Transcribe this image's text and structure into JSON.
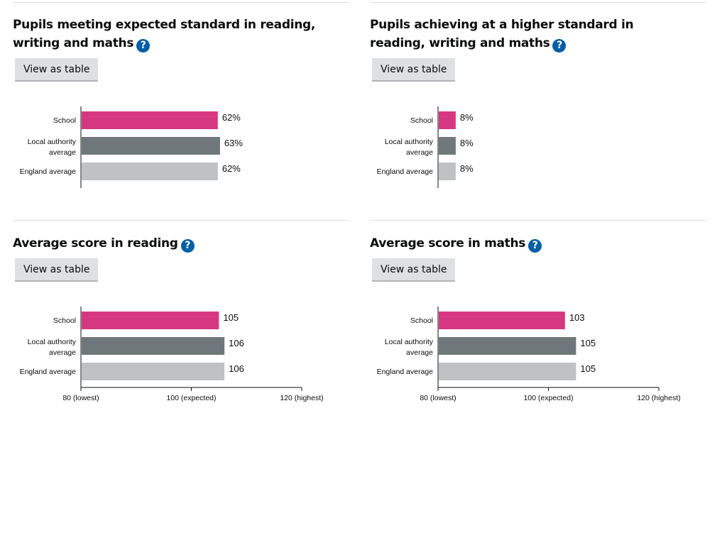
{
  "colors": {
    "school": "#d53880",
    "local_authority": "#6f777b",
    "england": "#bfc1c3",
    "help": "#005ea5"
  },
  "sections": [
    {
      "title": "Pupils meeting expected standard in reading, writing and maths",
      "button": "View as table",
      "help_icon": "question-circle-icon",
      "chart_data": {
        "type": "bar",
        "orientation": "horizontal",
        "categories": [
          "School",
          "Local authority average",
          "England average"
        ],
        "values": [
          62,
          63,
          62
        ],
        "value_labels": [
          "62%",
          "63%",
          "62%"
        ],
        "xlim": [
          0,
          100
        ],
        "ticks": []
      }
    },
    {
      "title": "Pupils achieving at a higher standard in reading, writing and maths",
      "button": "View as table",
      "help_icon": "question-circle-icon",
      "chart_data": {
        "type": "bar",
        "orientation": "horizontal",
        "categories": [
          "School",
          "Local authority average",
          "England average"
        ],
        "values": [
          8,
          8,
          8
        ],
        "value_labels": [
          "8%",
          "8%",
          "8%"
        ],
        "xlim": [
          0,
          100
        ],
        "ticks": []
      }
    },
    {
      "title": "Average score in reading",
      "button": "View as table",
      "help_icon": "question-circle-icon",
      "chart_data": {
        "type": "bar",
        "orientation": "horizontal",
        "categories": [
          "School",
          "Local authority average",
          "England average"
        ],
        "values": [
          105,
          106,
          106
        ],
        "value_labels": [
          "105",
          "106",
          "106"
        ],
        "xlim": [
          80,
          120
        ],
        "ticks": [
          {
            "value": 80,
            "label": "80 (lowest)"
          },
          {
            "value": 100,
            "label": "100 (expected)"
          },
          {
            "value": 120,
            "label": "120 (highest)"
          }
        ]
      }
    },
    {
      "title": "Average score in maths",
      "button": "View as table",
      "help_icon": "question-circle-icon",
      "chart_data": {
        "type": "bar",
        "orientation": "horizontal",
        "categories": [
          "School",
          "Local authority average",
          "England average"
        ],
        "values": [
          103,
          105,
          105
        ],
        "value_labels": [
          "103",
          "105",
          "105"
        ],
        "xlim": [
          80,
          120
        ],
        "ticks": [
          {
            "value": 80,
            "label": "80 (lowest)"
          },
          {
            "value": 100,
            "label": "100 (expected)"
          },
          {
            "value": 120,
            "label": "120 (highest)"
          }
        ]
      }
    }
  ]
}
